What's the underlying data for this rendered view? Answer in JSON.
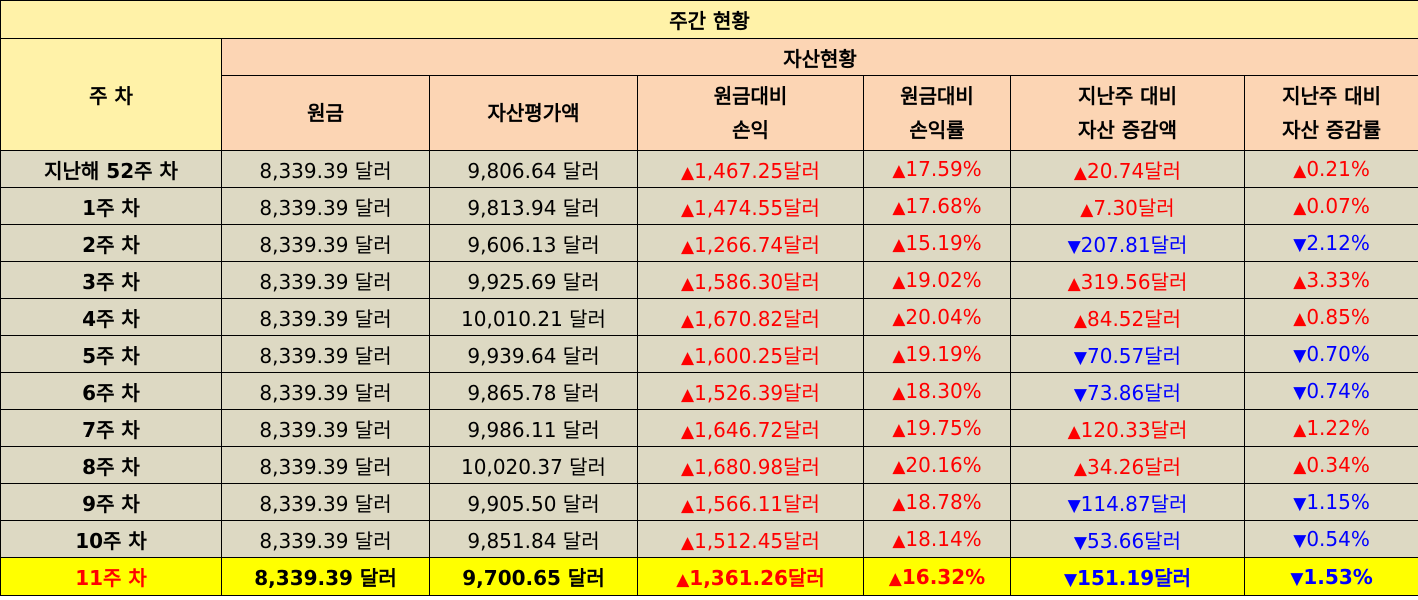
{
  "title": "주간 현황",
  "week_header": "주 차",
  "group_header": "자산현황",
  "columns": {
    "principal": [
      "원금"
    ],
    "asset_value": [
      "자산평가액"
    ],
    "pl": [
      "원금대비",
      "손익"
    ],
    "pl_rate": [
      "원금대비",
      "손익률"
    ],
    "wow_change": [
      "지난주 대비",
      "자산 증감액"
    ],
    "wow_rate": [
      "지난주 대비",
      "자산 증감률"
    ]
  },
  "symbols": {
    "up": "▲",
    "down": "▼"
  },
  "colors": {
    "up": "#ff0000",
    "down": "#0000ff",
    "current_row": "#ffff00",
    "title": "#fff2a8",
    "header": "#fcd5b4",
    "body": "#ddd9c3"
  },
  "rows": [
    {
      "week": "지난해 52주 차",
      "principal": "8,339.39 달러",
      "asset_value": "9,806.64 달러",
      "pl": {
        "dir": "up",
        "text": "1,467.25달러"
      },
      "pl_rate": {
        "dir": "up",
        "text": "17.59%"
      },
      "wow_change": {
        "dir": "up",
        "text": "20.74달러"
      },
      "wow_rate": {
        "dir": "up",
        "text": "0.21%"
      }
    },
    {
      "week": "1주 차",
      "principal": "8,339.39 달러",
      "asset_value": "9,813.94 달러",
      "pl": {
        "dir": "up",
        "text": "1,474.55달러"
      },
      "pl_rate": {
        "dir": "up",
        "text": "17.68%"
      },
      "wow_change": {
        "dir": "up",
        "text": "7.30달러"
      },
      "wow_rate": {
        "dir": "up",
        "text": "0.07%"
      }
    },
    {
      "week": "2주 차",
      "principal": "8,339.39 달러",
      "asset_value": "9,606.13 달러",
      "pl": {
        "dir": "up",
        "text": "1,266.74달러"
      },
      "pl_rate": {
        "dir": "up",
        "text": "15.19%"
      },
      "wow_change": {
        "dir": "down",
        "text": "207.81달러"
      },
      "wow_rate": {
        "dir": "down",
        "text": "2.12%"
      }
    },
    {
      "week": "3주 차",
      "principal": "8,339.39 달러",
      "asset_value": "9,925.69 달러",
      "pl": {
        "dir": "up",
        "text": "1,586.30달러"
      },
      "pl_rate": {
        "dir": "up",
        "text": "19.02%"
      },
      "wow_change": {
        "dir": "up",
        "text": "319.56달러"
      },
      "wow_rate": {
        "dir": "up",
        "text": "3.33%"
      }
    },
    {
      "week": "4주 차",
      "principal": "8,339.39 달러",
      "asset_value": "10,010.21 달러",
      "pl": {
        "dir": "up",
        "text": "1,670.82달러"
      },
      "pl_rate": {
        "dir": "up",
        "text": "20.04%"
      },
      "wow_change": {
        "dir": "up",
        "text": "84.52달러"
      },
      "wow_rate": {
        "dir": "up",
        "text": "0.85%"
      }
    },
    {
      "week": "5주 차",
      "principal": "8,339.39 달러",
      "asset_value": "9,939.64 달러",
      "pl": {
        "dir": "up",
        "text": "1,600.25달러"
      },
      "pl_rate": {
        "dir": "up",
        "text": "19.19%"
      },
      "wow_change": {
        "dir": "down",
        "text": "70.57달러"
      },
      "wow_rate": {
        "dir": "down",
        "text": "0.70%"
      }
    },
    {
      "week": "6주 차",
      "principal": "8,339.39 달러",
      "asset_value": "9,865.78 달러",
      "pl": {
        "dir": "up",
        "text": "1,526.39달러"
      },
      "pl_rate": {
        "dir": "up",
        "text": "18.30%"
      },
      "wow_change": {
        "dir": "down",
        "text": "73.86달러"
      },
      "wow_rate": {
        "dir": "down",
        "text": "0.74%"
      }
    },
    {
      "week": "7주 차",
      "principal": "8,339.39 달러",
      "asset_value": "9,986.11 달러",
      "pl": {
        "dir": "up",
        "text": "1,646.72달러"
      },
      "pl_rate": {
        "dir": "up",
        "text": "19.75%"
      },
      "wow_change": {
        "dir": "up",
        "text": "120.33달러"
      },
      "wow_rate": {
        "dir": "up",
        "text": "1.22%"
      }
    },
    {
      "week": "8주 차",
      "principal": "8,339.39 달러",
      "asset_value": "10,020.37 달러",
      "pl": {
        "dir": "up",
        "text": "1,680.98달러"
      },
      "pl_rate": {
        "dir": "up",
        "text": "20.16%"
      },
      "wow_change": {
        "dir": "up",
        "text": "34.26달러"
      },
      "wow_rate": {
        "dir": "up",
        "text": "0.34%"
      }
    },
    {
      "week": "9주 차",
      "principal": "8,339.39 달러",
      "asset_value": "9,905.50 달러",
      "pl": {
        "dir": "up",
        "text": "1,566.11달러"
      },
      "pl_rate": {
        "dir": "up",
        "text": "18.78%"
      },
      "wow_change": {
        "dir": "down",
        "text": "114.87달러"
      },
      "wow_rate": {
        "dir": "down",
        "text": "1.15%"
      }
    },
    {
      "week": "10주 차",
      "principal": "8,339.39 달러",
      "asset_value": "9,851.84 달러",
      "pl": {
        "dir": "up",
        "text": "1,512.45달러"
      },
      "pl_rate": {
        "dir": "up",
        "text": "18.14%"
      },
      "wow_change": {
        "dir": "down",
        "text": "53.66달러"
      },
      "wow_rate": {
        "dir": "down",
        "text": "0.54%"
      }
    },
    {
      "week": "11주 차",
      "current": true,
      "principal": "8,339.39 달러",
      "asset_value": "9,700.65 달러",
      "pl": {
        "dir": "up",
        "text": "1,361.26달러"
      },
      "pl_rate": {
        "dir": "up",
        "text": "16.32%"
      },
      "wow_change": {
        "dir": "down",
        "text": "151.19달러"
      },
      "wow_rate": {
        "dir": "down",
        "text": "1.53%"
      }
    }
  ]
}
